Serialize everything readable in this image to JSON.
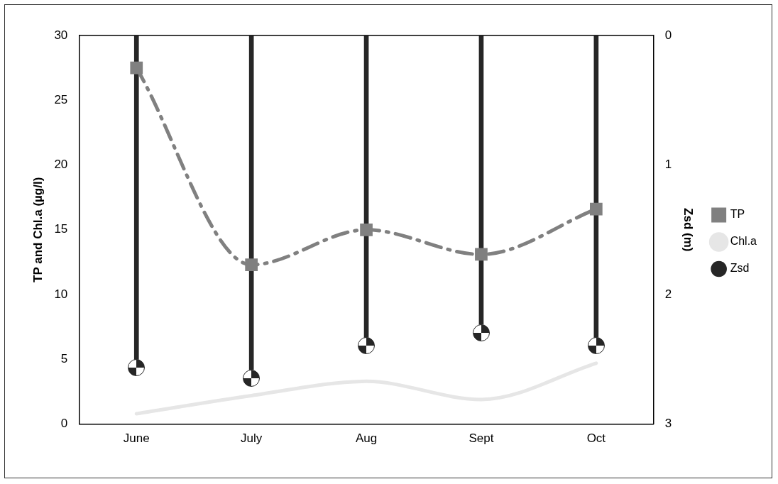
{
  "chart_data": {
    "type": "line",
    "xlabel": null,
    "ylabel": "TP and Chl.a (µg/l)",
    "y2label": "Zsd (m)",
    "categories": [
      "June",
      "July",
      "Aug",
      "Sept",
      "Oct"
    ],
    "series": [
      {
        "name": "TP",
        "color": "#808080",
        "values": [
          27.5,
          12.3,
          15,
          13.1,
          16.6
        ],
        "marker": "square",
        "line_style": "dashed"
      },
      {
        "name": "Chl.a",
        "color": "#e6e6e6",
        "values": [
          0.8,
          2.2,
          3.3,
          1.9,
          4.7
        ],
        "marker": "none",
        "line_style": "solid"
      },
      {
        "name": "Zsd",
        "type": "bar",
        "axis": "y2",
        "color": "#262626",
        "values": [
          2.5,
          2.58,
          2.33,
          2.23,
          2.33
        ],
        "marker": "circle"
      }
    ],
    "ylim": [
      0,
      30
    ],
    "yticks": [
      0,
      5,
      10,
      15,
      20,
      25,
      30
    ],
    "y2lim": [
      3,
      0
    ],
    "y2ticks": [
      0,
      1,
      2,
      3
    ],
    "grid": false,
    "legend": "right"
  }
}
